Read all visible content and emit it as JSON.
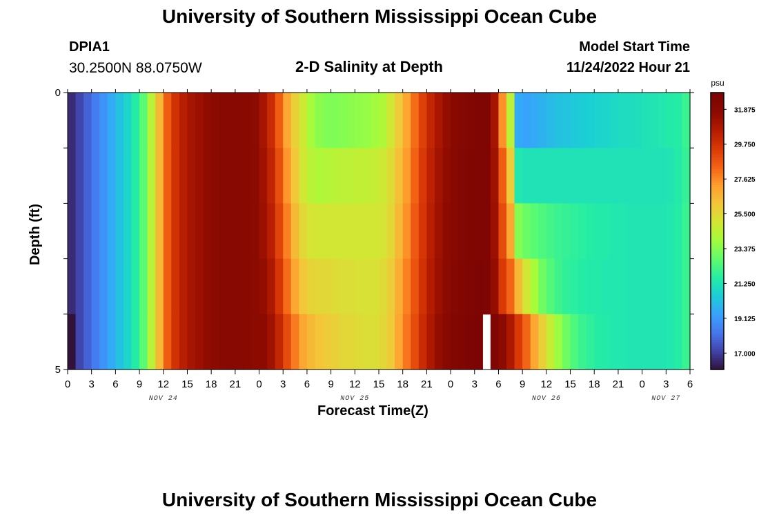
{
  "header": {
    "title": "University of Southern Mississippi Ocean Cube",
    "station_id": "DPIA1",
    "coordinates": "30.2500N  88.0750W",
    "subtitle": "2-D Salinity at Depth",
    "model_start_label": "Model Start Time",
    "model_start_value": "11/24/2022 Hour 21"
  },
  "footer": {
    "title": "University of Southern Mississippi Ocean Cube"
  },
  "chart_data": {
    "type": "heatmap",
    "title": "2-D Salinity at Depth",
    "xlabel": "Forecast Time(Z)",
    "ylabel": "Depth (ft)",
    "x_hours_range": [
      0,
      78
    ],
    "x_hour_step": 1,
    "y_depth_range": [
      0,
      5
    ],
    "y_tick_labels": [
      {
        "depth": 0,
        "label": "0"
      },
      {
        "depth": 1,
        "label": ""
      },
      {
        "depth": 2,
        "label": ""
      },
      {
        "depth": 3,
        "label": ""
      },
      {
        "depth": 4,
        "label": ""
      },
      {
        "depth": 5,
        "label": "5"
      }
    ],
    "x_tick_labels": [
      "0",
      "3",
      "6",
      "9",
      "12",
      "15",
      "18",
      "21",
      "0",
      "3",
      "6",
      "9",
      "12",
      "15",
      "18",
      "21",
      "0",
      "3",
      "6",
      "9",
      "12",
      "15",
      "18",
      "21",
      "0",
      "3",
      "6"
    ],
    "date_labels": [
      {
        "hour": 12,
        "label": "NOV 24"
      },
      {
        "hour": 36,
        "label": "NOV 25"
      },
      {
        "hour": 60,
        "label": "NOV 26"
      },
      {
        "hour": 75,
        "label": "NOV 27"
      }
    ],
    "colorbar": {
      "unit": "psu",
      "min": 16.0,
      "max": 32.9,
      "labels": [
        "31.875",
        "29.750",
        "27.625",
        "25.500",
        "23.375",
        "21.250",
        "19.125",
        "17.000"
      ],
      "label_values": [
        31.875,
        29.75,
        27.625,
        25.5,
        23.375,
        21.25,
        19.125,
        17.0
      ]
    },
    "depth_layers": [
      0,
      1,
      2,
      3,
      4
    ],
    "layer_series": [
      {
        "name": "0-1 ft",
        "values": [
          16.6,
          17.2,
          17.8,
          18.4,
          19.0,
          19.6,
          20.2,
          20.8,
          21.6,
          22.6,
          24.4,
          26.5,
          28.5,
          29.8,
          30.5,
          31.0,
          31.3,
          31.6,
          31.8,
          32.0,
          32.0,
          32.0,
          31.9,
          31.8,
          31.0,
          30.0,
          28.5,
          27.0,
          25.8,
          24.9,
          24.0,
          23.5,
          23.3,
          23.3,
          23.4,
          23.5,
          23.6,
          23.7,
          23.9,
          24.2,
          25.0,
          26.0,
          27.0,
          28.2,
          29.3,
          30.2,
          30.9,
          31.5,
          31.9,
          32.2,
          32.4,
          32.6,
          32.6,
          31.0,
          27.5,
          24.5,
          19.6,
          19.4,
          19.6,
          19.8,
          20.0,
          20.2,
          20.3,
          20.4,
          20.5,
          20.6,
          20.7,
          20.8,
          20.9,
          21.0,
          21.0,
          21.1,
          21.2,
          21.3,
          21.4,
          21.5,
          21.6,
          22.0
        ]
      },
      {
        "name": "1-2 ft",
        "values": [
          16.6,
          17.2,
          17.8,
          18.4,
          19.0,
          19.6,
          20.2,
          20.8,
          21.6,
          22.6,
          24.4,
          26.5,
          28.5,
          29.8,
          30.5,
          31.0,
          31.3,
          31.6,
          31.8,
          32.0,
          32.0,
          32.0,
          31.9,
          31.8,
          31.2,
          30.3,
          28.9,
          27.4,
          26.1,
          25.0,
          24.4,
          24.2,
          24.3,
          24.4,
          24.5,
          24.5,
          24.6,
          24.6,
          24.7,
          24.9,
          25.4,
          26.3,
          27.3,
          28.4,
          29.5,
          30.4,
          31.1,
          31.6,
          32.0,
          32.3,
          32.5,
          32.6,
          32.6,
          31.2,
          28.5,
          26.0,
          21.4,
          21.2,
          21.2,
          21.2,
          21.2,
          21.2,
          21.2,
          21.2,
          21.2,
          21.2,
          21.2,
          21.2,
          21.2,
          21.2,
          21.2,
          21.2,
          21.2,
          21.2,
          21.2,
          21.3,
          21.5,
          21.9
        ]
      },
      {
        "name": "2-3 ft",
        "values": [
          16.6,
          17.2,
          17.8,
          18.4,
          19.0,
          19.6,
          20.2,
          20.8,
          21.6,
          22.6,
          24.4,
          26.5,
          28.5,
          29.8,
          30.5,
          31.0,
          31.3,
          31.6,
          31.8,
          32.0,
          32.0,
          32.0,
          31.9,
          31.8,
          31.3,
          30.5,
          29.2,
          27.8,
          26.5,
          25.5,
          25.1,
          25.0,
          25.0,
          25.0,
          25.0,
          25.0,
          25.0,
          25.0,
          25.0,
          25.1,
          25.6,
          26.5,
          27.5,
          28.6,
          29.6,
          30.5,
          31.2,
          31.7,
          32.0,
          32.3,
          32.5,
          32.6,
          32.6,
          31.3,
          29.0,
          27.0,
          23.4,
          22.9,
          22.6,
          22.4,
          22.2,
          22.0,
          21.9,
          21.8,
          21.7,
          21.6,
          21.5,
          21.5,
          21.4,
          21.4,
          21.3,
          21.3,
          21.3,
          21.3,
          21.3,
          21.4,
          21.6,
          22.0
        ]
      },
      {
        "name": "3-4 ft",
        "values": [
          16.6,
          17.2,
          17.8,
          18.4,
          19.0,
          19.6,
          20.2,
          20.8,
          21.6,
          22.6,
          24.4,
          26.5,
          28.5,
          29.8,
          30.5,
          31.0,
          31.3,
          31.6,
          31.8,
          32.0,
          32.0,
          32.0,
          31.9,
          31.8,
          31.5,
          30.8,
          29.6,
          28.2,
          27.0,
          26.1,
          25.7,
          25.6,
          25.5,
          25.4,
          25.3,
          25.3,
          25.2,
          25.2,
          25.2,
          25.4,
          25.9,
          26.8,
          27.8,
          28.8,
          29.8,
          30.6,
          31.3,
          31.8,
          32.1,
          32.4,
          32.6,
          32.7,
          32.6,
          31.5,
          29.5,
          28.3,
          26.5,
          25.0,
          24.0,
          23.0,
          22.5,
          22.1,
          21.8,
          21.7,
          21.6,
          21.5,
          21.5,
          21.4,
          21.4,
          21.4,
          21.3,
          21.3,
          21.3,
          21.3,
          21.3,
          21.4,
          21.6,
          22.0
        ]
      },
      {
        "name": "4-5 ft",
        "values": [
          16.0,
          17.2,
          17.8,
          18.4,
          19.0,
          19.6,
          20.2,
          20.8,
          21.6,
          22.6,
          24.4,
          26.5,
          28.5,
          29.8,
          30.5,
          31.0,
          31.3,
          31.6,
          31.8,
          32.0,
          32.0,
          32.0,
          31.9,
          31.8,
          31.7,
          31.2,
          30.2,
          29.0,
          27.9,
          27.0,
          26.5,
          26.2,
          26.0,
          25.8,
          25.6,
          25.5,
          25.4,
          25.3,
          25.3,
          25.5,
          26.0,
          27.0,
          28.0,
          29.0,
          30.0,
          30.8,
          31.5,
          32.0,
          32.4,
          32.6,
          32.7,
          32.8,
          null,
          32.6,
          31.8,
          30.8,
          29.5,
          28.3,
          27.0,
          25.8,
          24.7,
          23.8,
          23.0,
          22.4,
          22.0,
          21.8,
          21.6,
          21.5,
          21.4,
          21.4,
          21.3,
          21.3,
          21.3,
          21.3,
          21.3,
          21.4,
          21.6,
          22.0
        ]
      }
    ]
  }
}
